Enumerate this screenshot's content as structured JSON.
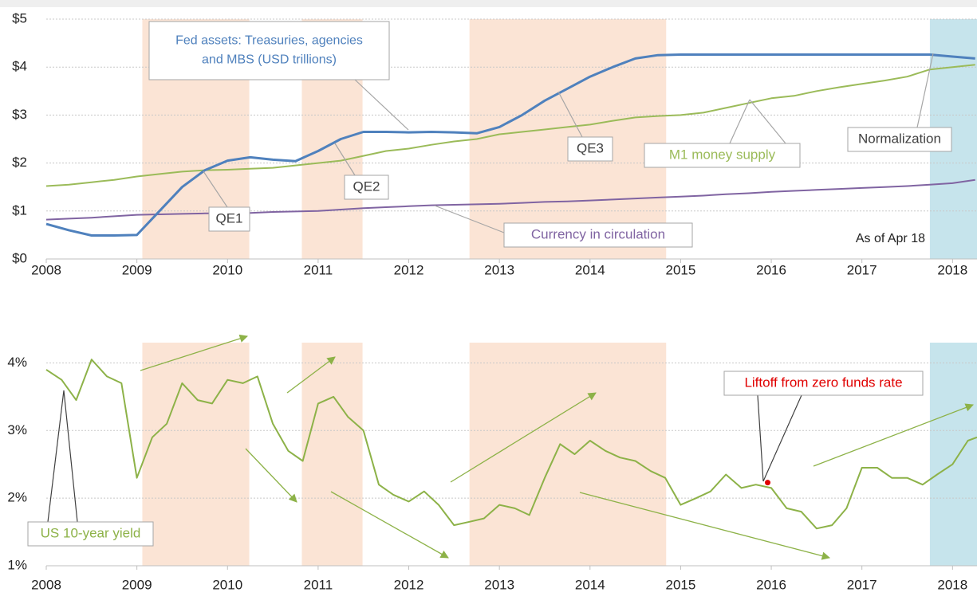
{
  "chart_data": [
    {
      "type": "line",
      "x": [
        2008,
        2008.25,
        2008.5,
        2008.75,
        2009,
        2009.25,
        2009.5,
        2009.75,
        2010,
        2010.25,
        2010.5,
        2010.75,
        2011,
        2011.25,
        2011.5,
        2011.75,
        2012,
        2012.25,
        2012.5,
        2012.75,
        2013,
        2013.25,
        2013.5,
        2013.75,
        2014,
        2014.25,
        2014.5,
        2014.75,
        2015,
        2015.25,
        2015.5,
        2015.75,
        2016,
        2016.25,
        2016.5,
        2016.75,
        2017,
        2017.25,
        2017.5,
        2017.75,
        2018,
        2018.25
      ],
      "series": [
        {
          "name": "Fed assets",
          "color": "#4f81bd",
          "values": [
            0.73,
            0.6,
            0.49,
            0.49,
            0.5,
            1.0,
            1.5,
            1.85,
            2.05,
            2.12,
            2.07,
            2.04,
            2.25,
            2.5,
            2.65,
            2.65,
            2.64,
            2.65,
            2.64,
            2.62,
            2.75,
            3.0,
            3.3,
            3.55,
            3.8,
            4.0,
            4.18,
            4.25,
            4.26,
            4.26,
            4.26,
            4.26,
            4.26,
            4.26,
            4.26,
            4.26,
            4.26,
            4.26,
            4.26,
            4.26,
            4.22,
            4.18
          ]
        },
        {
          "name": "M1 money supply",
          "color": "#9bbb59",
          "values": [
            1.52,
            1.55,
            1.6,
            1.65,
            1.72,
            1.77,
            1.82,
            1.85,
            1.86,
            1.88,
            1.9,
            1.95,
            2.0,
            2.05,
            2.15,
            2.25,
            2.3,
            2.38,
            2.45,
            2.5,
            2.6,
            2.65,
            2.7,
            2.75,
            2.8,
            2.88,
            2.95,
            2.98,
            3.0,
            3.05,
            3.15,
            3.25,
            3.35,
            3.4,
            3.5,
            3.58,
            3.65,
            3.72,
            3.8,
            3.95,
            4.0,
            4.05
          ]
        },
        {
          "name": "Currency in circulation",
          "color": "#8064a2",
          "values": [
            0.82,
            0.84,
            0.86,
            0.89,
            0.92,
            0.93,
            0.94,
            0.95,
            0.95,
            0.96,
            0.98,
            0.99,
            1.0,
            1.03,
            1.06,
            1.08,
            1.1,
            1.12,
            1.13,
            1.14,
            1.15,
            1.17,
            1.19,
            1.2,
            1.22,
            1.24,
            1.26,
            1.28,
            1.3,
            1.32,
            1.35,
            1.37,
            1.4,
            1.42,
            1.44,
            1.46,
            1.48,
            1.5,
            1.52,
            1.55,
            1.58,
            1.65
          ]
        }
      ],
      "regions": [
        {
          "start": 2009.06,
          "end": 2010.24,
          "color": "#fbe4d5"
        },
        {
          "start": 2010.82,
          "end": 2011.49,
          "color": "#fbe4d5"
        },
        {
          "start": 2012.67,
          "end": 2014.84,
          "color": "#fbe4d5"
        },
        {
          "start": 2017.75,
          "end": 2018.27,
          "color": "#c6e4ec"
        }
      ],
      "xlim": [
        2008,
        2018.27
      ],
      "xticks": [
        2008,
        2009,
        2010,
        2011,
        2012,
        2013,
        2014,
        2015,
        2016,
        2017,
        2018
      ],
      "ylim": [
        0,
        5
      ],
      "yticks": [
        {
          "value": 0,
          "label": "$0"
        },
        {
          "value": 1,
          "label": "$1"
        },
        {
          "value": 2,
          "label": "$2"
        },
        {
          "value": 3,
          "label": "$3"
        },
        {
          "value": 4,
          "label": "$4"
        },
        {
          "value": 5,
          "label": "$5"
        }
      ],
      "grid": true,
      "annotations": [
        {
          "lines": [
            "Fed assets: Treasuries, agencies",
            "and MBS (USD trillions)"
          ],
          "color": "#4f81bd"
        },
        {
          "lines": [
            "QE1"
          ],
          "color": "#404040"
        },
        {
          "lines": [
            "QE2"
          ],
          "color": "#404040"
        },
        {
          "lines": [
            "QE3"
          ],
          "color": "#404040"
        },
        {
          "lines": [
            "M1 money supply"
          ],
          "color": "#9bbb59"
        },
        {
          "lines": [
            "Currency in circulation"
          ],
          "color": "#8064a2"
        },
        {
          "lines": [
            "Normalization"
          ],
          "color": "#404040"
        }
      ],
      "note": "As of Apr 18"
    },
    {
      "type": "line",
      "x": [
        2008,
        2008.17,
        2008.33,
        2008.5,
        2008.67,
        2008.83,
        2009,
        2009.17,
        2009.33,
        2009.5,
        2009.67,
        2009.83,
        2010,
        2010.17,
        2010.33,
        2010.5,
        2010.67,
        2010.83,
        2011,
        2011.17,
        2011.33,
        2011.5,
        2011.67,
        2011.83,
        2012,
        2012.17,
        2012.33,
        2012.5,
        2012.67,
        2012.83,
        2013,
        2013.17,
        2013.33,
        2013.5,
        2013.67,
        2013.83,
        2014,
        2014.17,
        2014.33,
        2014.5,
        2014.67,
        2014.83,
        2015,
        2015.17,
        2015.33,
        2015.5,
        2015.67,
        2015.83,
        2016,
        2016.17,
        2016.33,
        2016.5,
        2016.67,
        2016.83,
        2017,
        2017.17,
        2017.33,
        2017.5,
        2017.67,
        2017.83,
        2018,
        2018.17,
        2018.27
      ],
      "series": [
        {
          "name": "US 10-year yield",
          "color": "#8db248",
          "values": [
            3.9,
            3.75,
            3.45,
            4.05,
            3.8,
            3.7,
            2.3,
            2.9,
            3.1,
            3.7,
            3.45,
            3.4,
            3.75,
            3.7,
            3.8,
            3.1,
            2.7,
            2.55,
            3.4,
            3.5,
            3.2,
            3.0,
            2.2,
            2.05,
            1.95,
            2.1,
            1.9,
            1.6,
            1.65,
            1.7,
            1.9,
            1.85,
            1.75,
            2.3,
            2.8,
            2.65,
            2.85,
            2.7,
            2.6,
            2.55,
            2.4,
            2.3,
            1.9,
            2.0,
            2.1,
            2.35,
            2.15,
            2.2,
            2.15,
            1.85,
            1.8,
            1.55,
            1.6,
            1.85,
            2.45,
            2.45,
            2.3,
            2.3,
            2.2,
            2.35,
            2.5,
            2.85,
            2.9
          ]
        }
      ],
      "regions": [
        {
          "start": 2009.06,
          "end": 2010.24,
          "color": "#fbe4d5"
        },
        {
          "start": 2010.82,
          "end": 2011.49,
          "color": "#fbe4d5"
        },
        {
          "start": 2012.67,
          "end": 2014.84,
          "color": "#fbe4d5"
        },
        {
          "start": 2017.75,
          "end": 2018.27,
          "color": "#c6e4ec"
        }
      ],
      "highlight": {
        "x": 2015.96,
        "y": 2.23,
        "color": "#e00000"
      },
      "xlim": [
        2008,
        2018.27
      ],
      "xticks": [
        2008,
        2009,
        2010,
        2011,
        2012,
        2013,
        2014,
        2015,
        2016,
        2017,
        2018
      ],
      "ylim": [
        1,
        4.3
      ],
      "yticks": [
        {
          "value": 1,
          "label": "1%"
        },
        {
          "value": 2,
          "label": "2%"
        },
        {
          "value": 3,
          "label": "3%"
        },
        {
          "value": 4,
          "label": "4%"
        }
      ],
      "grid": true,
      "annotations": [
        {
          "lines": [
            "Liftoff from zero funds rate"
          ],
          "color": "#e00000"
        },
        {
          "lines": [
            "US 10-year yield"
          ],
          "color": "#8db248"
        }
      ]
    }
  ]
}
